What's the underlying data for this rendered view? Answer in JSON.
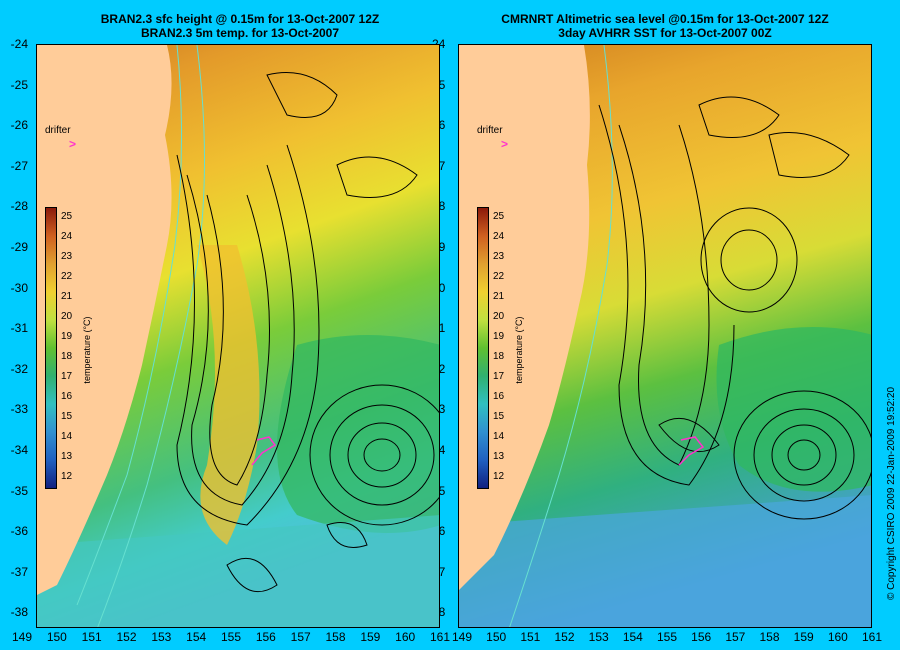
{
  "left_panel": {
    "title_line1": "BRAN2.3 sfc height @ 0.15m for 13-Oct-2007 12Z",
    "title_line2": "BRAN2.3 5m temp. for 13-Oct-2007",
    "drifter_label": "drifter",
    "drifter_marker": ">"
  },
  "right_panel": {
    "title_line1": "CMRNRT Altimetric sea level  @0.15m  for 13-Oct-2007 12Z",
    "title_line2": "3day AVHRR SST for 13-Oct-2007 00Z",
    "drifter_label": "drifter",
    "drifter_marker": ">"
  },
  "lat_ticks": [
    "-24",
    "-25",
    "-26",
    "-27",
    "-28",
    "-29",
    "-30",
    "-31",
    "-32",
    "-33",
    "-34",
    "-35",
    "-36",
    "-37",
    "-38"
  ],
  "lon_ticks": [
    "149",
    "150",
    "151",
    "152",
    "153",
    "154",
    "155",
    "156",
    "157",
    "158",
    "159",
    "160",
    "161"
  ],
  "colorbar": {
    "label": "temperature (°C)",
    "ticks": [
      "25",
      "24",
      "23",
      "22",
      "21",
      "20",
      "19",
      "18",
      "17",
      "16",
      "15",
      "14",
      "13",
      "12"
    ],
    "range": [
      11,
      26
    ]
  },
  "copyright": "© Copyright CSIRO 2009   22-Jan-2009 19:52:20",
  "colors": {
    "background": "#00ccff",
    "land": "#ffcc99",
    "warm": "#e8a020",
    "mid": "#66cc33",
    "cool": "#33cccc",
    "contour": "#000000",
    "bathymetry": "#66e0d0",
    "drifter": "#ff33cc"
  }
}
